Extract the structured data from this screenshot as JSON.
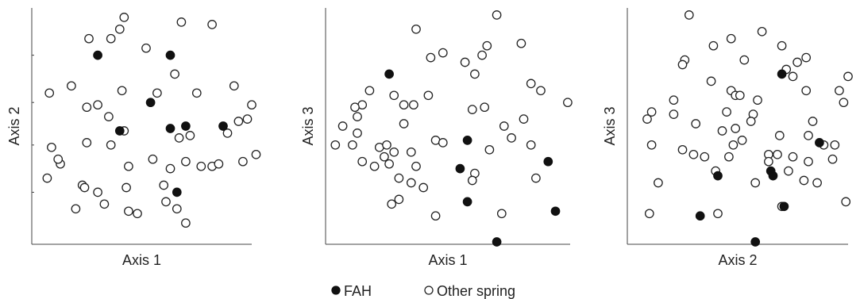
{
  "legend": {
    "fah_label": "FAH",
    "other_label": "Other spring"
  },
  "chart_data": [
    {
      "type": "scatter",
      "xlabel": "Axis 1",
      "ylabel": "Axis 2",
      "xlim": [
        0,
        100
      ],
      "ylim": [
        0,
        100
      ],
      "y_ticks": [
        22,
        42,
        60,
        80
      ],
      "grid": false,
      "legend_placement": "bottom-center",
      "series": [
        {
          "name": "FAH",
          "filled": true,
          "points": [
            [
              30,
              80
            ],
            [
              63,
              80
            ],
            [
              54,
              60
            ],
            [
              40,
              48
            ],
            [
              63,
              49
            ],
            [
              70,
              50
            ],
            [
              87,
              50
            ],
            [
              66,
              22
            ]
          ]
        },
        {
          "name": "Other spring",
          "filled": false,
          "points": [
            [
              42,
              96
            ],
            [
              68,
              94
            ],
            [
              82,
              93
            ],
            [
              40,
              91
            ],
            [
              26,
              87
            ],
            [
              36,
              87
            ],
            [
              52,
              83
            ],
            [
              65,
              72
            ],
            [
              30,
              59
            ],
            [
              41,
              65
            ],
            [
              57,
              64
            ],
            [
              75,
              64
            ],
            [
              92,
              67
            ],
            [
              8,
              64
            ],
            [
              18,
              67
            ],
            [
              25,
              58
            ],
            [
              35,
              54
            ],
            [
              9,
              41
            ],
            [
              36,
              42
            ],
            [
              72,
              46
            ],
            [
              89,
              47
            ],
            [
              94,
              52
            ],
            [
              98,
              53
            ],
            [
              100,
              59
            ],
            [
              25,
              43
            ],
            [
              67,
              45
            ],
            [
              42,
              48
            ],
            [
              13,
              34
            ],
            [
              12,
              36
            ],
            [
              23,
              25
            ],
            [
              44,
              33
            ],
            [
              63,
              32
            ],
            [
              77,
              33
            ],
            [
              82,
              33
            ],
            [
              85,
              34
            ],
            [
              70,
              35
            ],
            [
              55,
              36
            ],
            [
              96,
              35
            ],
            [
              102,
              38
            ],
            [
              7,
              28
            ],
            [
              24,
              24
            ],
            [
              30,
              22
            ],
            [
              43,
              24
            ],
            [
              60,
              25
            ],
            [
              20,
              15
            ],
            [
              33,
              17
            ],
            [
              44,
              14
            ],
            [
              48,
              13
            ],
            [
              61,
              18
            ],
            [
              66,
              15
            ],
            [
              70,
              9
            ]
          ]
        }
      ]
    },
    {
      "type": "scatter",
      "xlabel": "Axis 1",
      "ylabel": "Axis 3",
      "xlim": [
        0,
        100
      ],
      "ylim": [
        0,
        100
      ],
      "grid": false,
      "series": [
        {
          "name": "FAH",
          "filled": true,
          "points": [
            [
              26,
              72
            ],
            [
              58,
              44
            ],
            [
              55,
              32
            ],
            [
              91,
              35
            ],
            [
              58,
              18
            ],
            [
              94,
              14
            ],
            [
              70,
              1
            ]
          ]
        },
        {
          "name": "Other spring",
          "filled": false,
          "points": [
            [
              70,
              97
            ],
            [
              37,
              91
            ],
            [
              66,
              84
            ],
            [
              80,
              85
            ],
            [
              64,
              80
            ],
            [
              48,
              81
            ],
            [
              57,
              77
            ],
            [
              43,
              79
            ],
            [
              61,
              72
            ],
            [
              84,
              68
            ],
            [
              88,
              65
            ],
            [
              28,
              63
            ],
            [
              18,
              65
            ],
            [
              42,
              63
            ],
            [
              15,
              59
            ],
            [
              12,
              58
            ],
            [
              32,
              59
            ],
            [
              36,
              59
            ],
            [
              60,
              57
            ],
            [
              65,
              58
            ],
            [
              99,
              60
            ],
            [
              13,
              54
            ],
            [
              7,
              50
            ],
            [
              13,
              47
            ],
            [
              11,
              42
            ],
            [
              4,
              42
            ],
            [
              32,
              51
            ],
            [
              81,
              53
            ],
            [
              73,
              50
            ],
            [
              84,
              42
            ],
            [
              22,
              41
            ],
            [
              25,
              42
            ],
            [
              28,
              39
            ],
            [
              45,
              44
            ],
            [
              48,
              43
            ],
            [
              76,
              45
            ],
            [
              15,
              35
            ],
            [
              24,
              37
            ],
            [
              35,
              39
            ],
            [
              67,
              40
            ],
            [
              37,
              33
            ],
            [
              26,
              34
            ],
            [
              20,
              33
            ],
            [
              61,
              30
            ],
            [
              60,
              27
            ],
            [
              30,
              28
            ],
            [
              35,
              26
            ],
            [
              40,
              24
            ],
            [
              30,
              19
            ],
            [
              27,
              17
            ],
            [
              45,
              12
            ],
            [
              72,
              13
            ],
            [
              86,
              28
            ]
          ]
        }
      ]
    },
    {
      "type": "scatter",
      "xlabel": "Axis 2",
      "ylabel": "Axis 3",
      "xlim": [
        0,
        100
      ],
      "ylim": [
        0,
        100
      ],
      "grid": false,
      "series": [
        {
          "name": "FAH",
          "filled": true,
          "points": [
            [
              70,
              72
            ],
            [
              87,
              43
            ],
            [
              41,
              29
            ],
            [
              65,
              31
            ],
            [
              66,
              29
            ],
            [
              71,
              16
            ],
            [
              33,
              12
            ],
            [
              58,
              1
            ]
          ]
        },
        {
          "name": "Other spring",
          "filled": false,
          "points": [
            [
              28,
              97
            ],
            [
              61,
              90
            ],
            [
              47,
              87
            ],
            [
              39,
              84
            ],
            [
              70,
              84
            ],
            [
              77,
              77
            ],
            [
              81,
              79
            ],
            [
              72,
              74
            ],
            [
              26,
              78
            ],
            [
              25,
              76
            ],
            [
              53,
              78
            ],
            [
              38,
              69
            ],
            [
              47,
              65
            ],
            [
              49,
              63
            ],
            [
              51,
              63
            ],
            [
              59,
              61
            ],
            [
              75,
              71
            ],
            [
              100,
              71
            ],
            [
              81,
              65
            ],
            [
              96,
              65
            ],
            [
              98,
              60
            ],
            [
              21,
              61
            ],
            [
              11,
              56
            ],
            [
              21,
              55
            ],
            [
              45,
              56
            ],
            [
              57,
              55
            ],
            [
              9,
              53
            ],
            [
              31,
              51
            ],
            [
              43,
              48
            ],
            [
              49,
              49
            ],
            [
              56,
              52
            ],
            [
              69,
              46
            ],
            [
              48,
              42
            ],
            [
              52,
              44
            ],
            [
              82,
              46
            ],
            [
              84,
              52
            ],
            [
              89,
              42
            ],
            [
              25,
              40
            ],
            [
              35,
              37
            ],
            [
              46,
              37
            ],
            [
              64,
              38
            ],
            [
              75,
              37
            ],
            [
              82,
              35
            ],
            [
              93,
              36
            ],
            [
              11,
              42
            ],
            [
              30,
              38
            ],
            [
              68,
              38
            ],
            [
              94,
              42
            ],
            [
              40,
              31
            ],
            [
              64,
              35
            ],
            [
              73,
              31
            ],
            [
              86,
              26
            ],
            [
              58,
              26
            ],
            [
              80,
              27
            ],
            [
              14,
              26
            ],
            [
              10,
              13
            ],
            [
              41,
              13
            ],
            [
              70,
              16
            ],
            [
              99,
              18
            ]
          ]
        }
      ]
    }
  ]
}
